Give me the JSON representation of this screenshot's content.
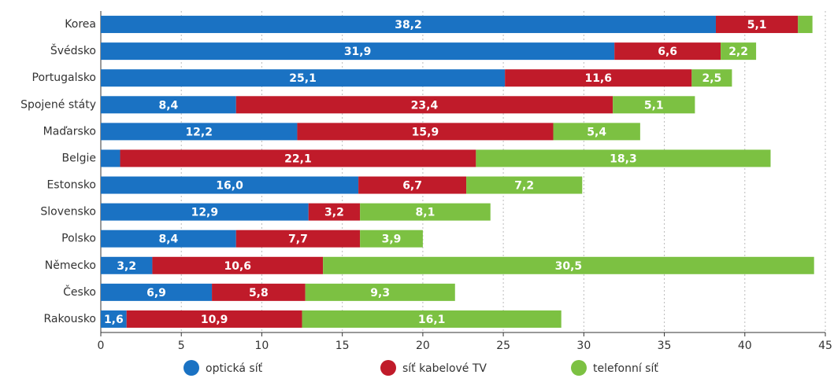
{
  "chart_data": {
    "type": "stacked-barh",
    "categories": [
      "Korea",
      "Švédsko",
      "Portugalsko",
      "Spojené státy",
      "Maďarsko",
      "Belgie",
      "Estonsko",
      "Slovensko",
      "Polsko",
      "Německo",
      "Česko",
      "Rakousko"
    ],
    "series": [
      {
        "name": "optická síť",
        "color": "#1a72c3",
        "values": [
          38.2,
          31.9,
          25.1,
          8.4,
          12.2,
          1.2,
          16.0,
          12.9,
          8.4,
          3.2,
          6.9,
          1.6
        ],
        "value_labels": [
          "38,2",
          "31,9",
          "25,1",
          "8,4",
          "12,2",
          null,
          "16,0",
          "12,9",
          "8,4",
          "3,2",
          "6,9",
          "1,6"
        ]
      },
      {
        "name": "síť kabelové TV",
        "color": "#c01b2a",
        "values": [
          5.1,
          6.6,
          11.6,
          23.4,
          15.9,
          22.1,
          6.7,
          3.2,
          7.7,
          10.6,
          5.8,
          10.9
        ],
        "value_labels": [
          "5,1",
          "6,6",
          "11,6",
          "23,4",
          "15,9",
          "22,1",
          "6,7",
          "3,2",
          "7,7",
          "10,6",
          "5,8",
          "10,9"
        ]
      },
      {
        "name": "telefonní síť",
        "color": "#7cc142",
        "values": [
          0.9,
          2.2,
          2.5,
          5.1,
          5.4,
          18.3,
          7.2,
          8.1,
          3.9,
          30.5,
          9.3,
          16.1
        ],
        "value_labels": [
          null,
          "2,2",
          "2,5",
          "5,1",
          "5,4",
          "18,3",
          "7,2",
          "8,1",
          "3,9",
          "30,5",
          "9,3",
          "16,1"
        ]
      }
    ],
    "xlim": [
      0,
      45
    ],
    "xticks": [
      0,
      5,
      10,
      15,
      20,
      25,
      30,
      35,
      40,
      45
    ],
    "grid": true
  }
}
